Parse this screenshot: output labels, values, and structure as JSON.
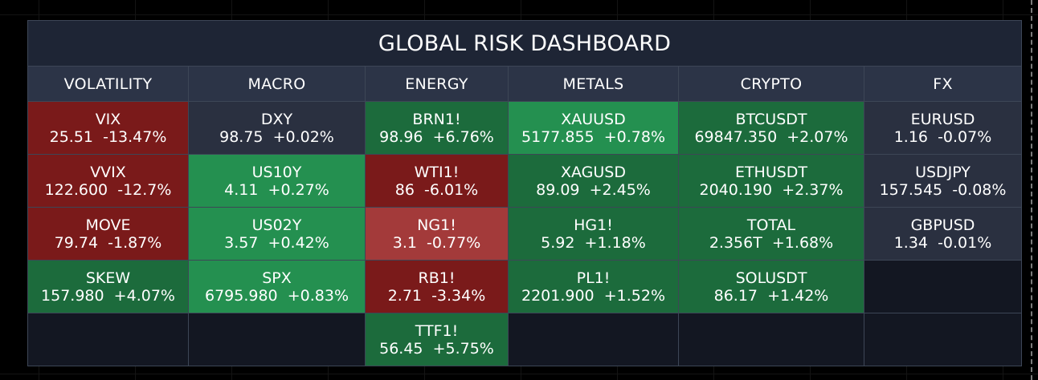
{
  "title": "GLOBAL RISK DASHBOARD",
  "colors": {
    "background": "#000000",
    "frame": "#1e2535",
    "border": "#3d4656",
    "header_bg": "#2c3447",
    "empty_bg": "#131722",
    "neutral": "#2a3040",
    "dark_red": "#7a1a1a",
    "light_red": "#a33a3a",
    "dark_green": "#1c6b3c",
    "light_green": "#249050"
  },
  "columns": [
    {
      "name": "VOLATILITY",
      "tiles": [
        {
          "symbol": "VIX",
          "value": "25.51  -13.47%",
          "color": "#7a1a1a"
        },
        {
          "symbol": "VVIX",
          "value": "122.600  -12.7%",
          "color": "#7a1a1a"
        },
        {
          "symbol": "MOVE",
          "value": "79.74  -1.87%",
          "color": "#7a1a1a"
        },
        {
          "symbol": "SKEW",
          "value": "157.980  +4.07%",
          "color": "#1c6b3c"
        },
        null
      ]
    },
    {
      "name": "MACRO",
      "tiles": [
        {
          "symbol": "DXY",
          "value": "98.75  +0.02%",
          "color": "#2a3040"
        },
        {
          "symbol": "US10Y",
          "value": "4.11  +0.27%",
          "color": "#249050"
        },
        {
          "symbol": "US02Y",
          "value": "3.57  +0.42%",
          "color": "#249050"
        },
        {
          "symbol": "SPX",
          "value": "6795.980  +0.83%",
          "color": "#249050"
        },
        null
      ]
    },
    {
      "name": "ENERGY",
      "tiles": [
        {
          "symbol": "BRN1!",
          "value": "98.96  +6.76%",
          "color": "#1c6b3c"
        },
        {
          "symbol": "WTI1!",
          "value": "86  -6.01%",
          "color": "#7a1a1a"
        },
        {
          "symbol": "NG1!",
          "value": "3.1  -0.77%",
          "color": "#a33a3a"
        },
        {
          "symbol": "RB1!",
          "value": "2.71  -3.34%",
          "color": "#7a1a1a"
        },
        {
          "symbol": "TTF1!",
          "value": "56.45  +5.75%",
          "color": "#1c6b3c"
        }
      ]
    },
    {
      "name": "METALS",
      "tiles": [
        {
          "symbol": "XAUUSD",
          "value": "5177.855  +0.78%",
          "color": "#249050"
        },
        {
          "symbol": "XAGUSD",
          "value": "89.09  +2.45%",
          "color": "#1c6b3c"
        },
        {
          "symbol": "HG1!",
          "value": "5.92  +1.18%",
          "color": "#1c6b3c"
        },
        {
          "symbol": "PL1!",
          "value": "2201.900  +1.52%",
          "color": "#1c6b3c"
        },
        null
      ]
    },
    {
      "name": "CRYPTO",
      "tiles": [
        {
          "symbol": "BTCUSDT",
          "value": "69847.350  +2.07%",
          "color": "#1c6b3c"
        },
        {
          "symbol": "ETHUSDT",
          "value": "2040.190  +2.37%",
          "color": "#1c6b3c"
        },
        {
          "symbol": "TOTAL",
          "value": "2.356T  +1.68%",
          "color": "#1c6b3c"
        },
        {
          "symbol": "SOLUSDT",
          "value": "86.17  +1.42%",
          "color": "#1c6b3c"
        },
        null
      ]
    },
    {
      "name": "FX",
      "tiles": [
        {
          "symbol": "EURUSD",
          "value": "1.16  -0.07%",
          "color": "#2a3040"
        },
        {
          "symbol": "USDJPY",
          "value": "157.545  -0.08%",
          "color": "#2a3040"
        },
        {
          "symbol": "GBPUSD",
          "value": "1.34  -0.01%",
          "color": "#2a3040"
        },
        null,
        null
      ]
    }
  ]
}
